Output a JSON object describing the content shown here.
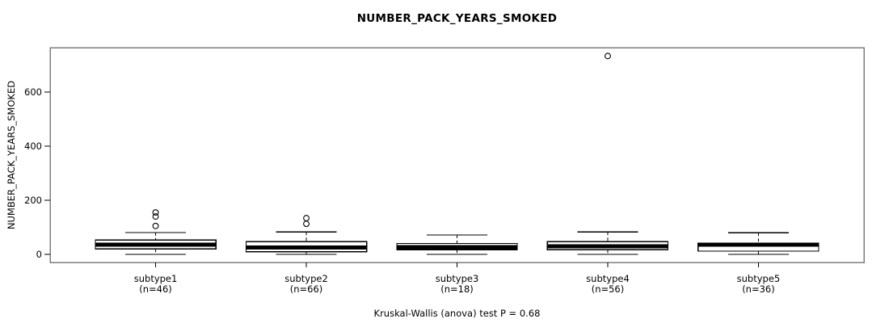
{
  "chart_data": {
    "type": "boxplot",
    "title": "NUMBER_PACK_YEARS_SMOKED",
    "ylabel": "NUMBER_PACK_YEARS_SMOKED",
    "xlabel": "",
    "annotation": "Kruskal-Wallis (anova) test P = 0.68",
    "test": {
      "name": "Kruskal-Wallis (anova) test",
      "p_value": 0.68
    },
    "ylim": [
      -30,
      765
    ],
    "yticks": [
      0,
      200,
      400,
      600
    ],
    "grid": false,
    "legend": "none",
    "colors": {
      "background": "#ffffff",
      "frame": "#7d7d7d",
      "element": "#000000",
      "box_fill": "#ffffff"
    },
    "groups": [
      {
        "label": "subtype1",
        "n_label": "(n=46)",
        "n": 46,
        "stats": {
          "low": 0,
          "q1": 20,
          "median": 36,
          "q3": 53,
          "high": 81
        },
        "outliers": [
          105,
          140,
          155
        ]
      },
      {
        "label": "subtype2",
        "n_label": "(n=66)",
        "n": 66,
        "stats": {
          "low": 0,
          "q1": 10,
          "median": 25,
          "q3": 47,
          "high": 83
        },
        "outliers": [
          113,
          134
        ]
      },
      {
        "label": "subtype3",
        "n_label": "(n=18)",
        "n": 18,
        "stats": {
          "low": 0,
          "q1": 17,
          "median": 27,
          "q3": 40,
          "high": 72
        },
        "outliers": []
      },
      {
        "label": "subtype4",
        "n_label": "(n=56)",
        "n": 56,
        "stats": {
          "low": 0,
          "q1": 17,
          "median": 30,
          "q3": 47,
          "high": 83
        },
        "outliers": [
          734
        ]
      },
      {
        "label": "subtype5",
        "n_label": "(n=36)",
        "n": 36,
        "stats": {
          "low": 0,
          "q1": 12,
          "median": 36,
          "q3": 42,
          "high": 80
        },
        "outliers": []
      }
    ]
  }
}
